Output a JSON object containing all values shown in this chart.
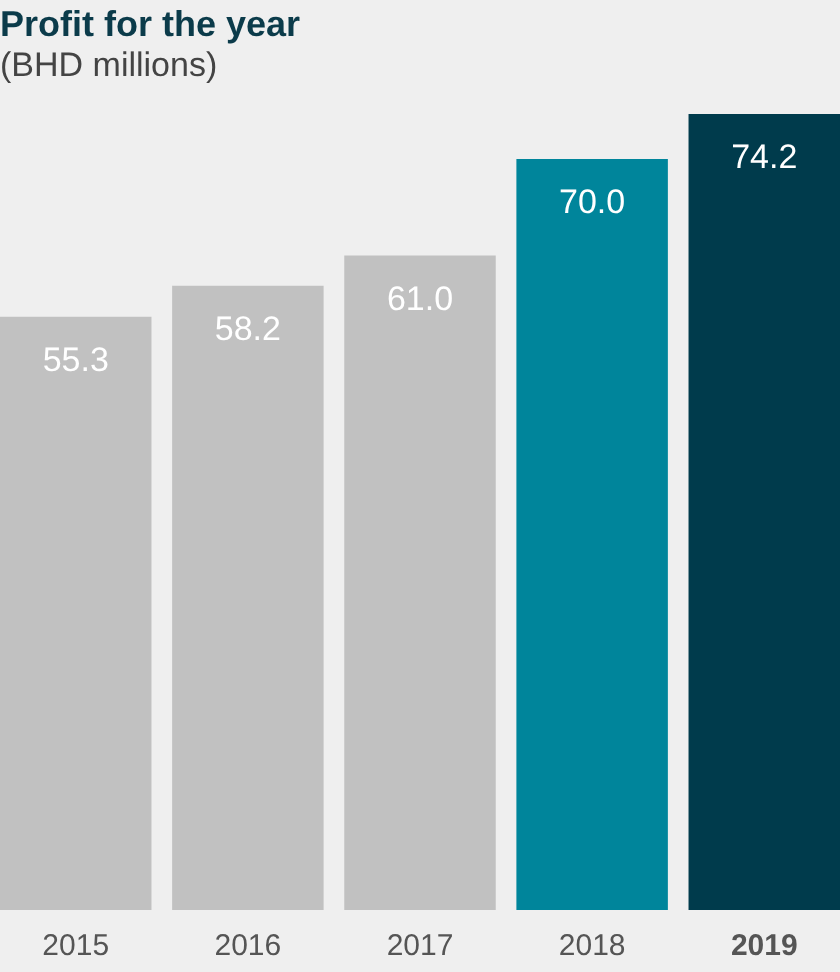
{
  "chart_data": {
    "type": "bar",
    "title": "Profit for the year",
    "subtitle": "(BHD millions)",
    "categories": [
      "2015",
      "2016",
      "2017",
      "2018",
      "2019"
    ],
    "values": [
      55.3,
      58.2,
      61.0,
      70.0,
      74.2
    ],
    "colors": [
      "#c1c1c1",
      "#c1c1c1",
      "#c1c1c1",
      "#00859b",
      "#003b4c"
    ],
    "value_labels": [
      "55.3",
      "58.2",
      "61.0",
      "70.0",
      "74.2"
    ]
  }
}
